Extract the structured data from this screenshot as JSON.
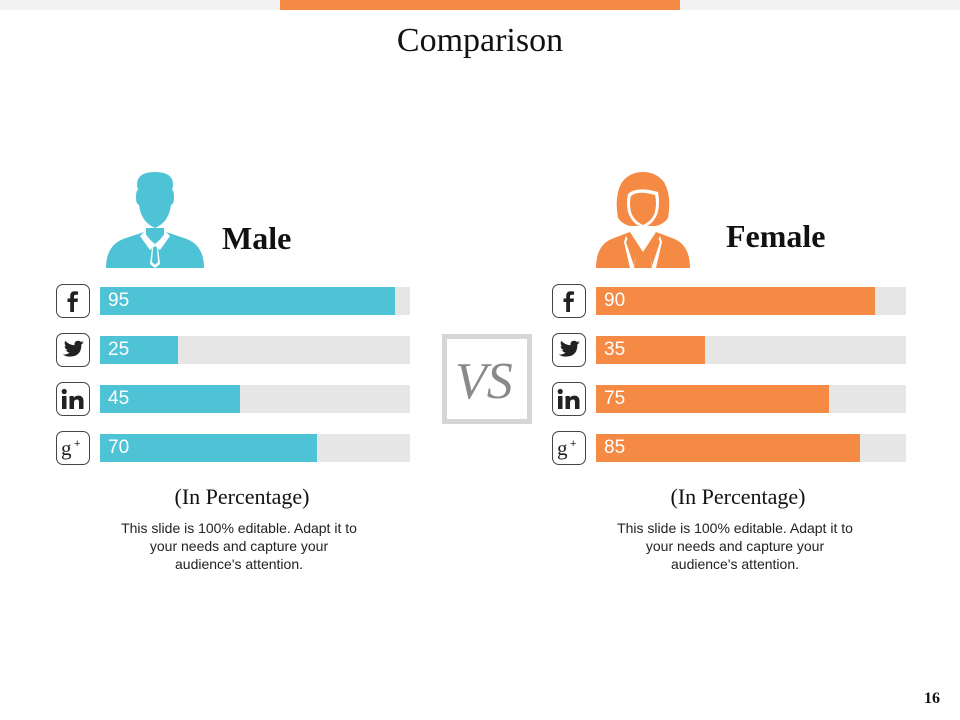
{
  "title": "Comparison",
  "page_number": "16",
  "colors": {
    "accent": "#f58a45",
    "male": "#4fc3d6",
    "female": "#f58a45",
    "track": "#e6e6e6"
  },
  "vs_label": "VS",
  "male": {
    "label": "Male",
    "avatar_icon": "male-user-icon",
    "caption": "(In Percentage)",
    "description": "This slide is 100% editable. Adapt it to your needs and capture your audience's attention.",
    "rows": [
      {
        "icon": "facebook-icon",
        "value": 95,
        "text": "95"
      },
      {
        "icon": "twitter-icon",
        "value": 25,
        "text": "25"
      },
      {
        "icon": "linkedin-icon",
        "value": 45,
        "text": "45"
      },
      {
        "icon": "google-plus-icon",
        "value": 70,
        "text": "70"
      }
    ]
  },
  "female": {
    "label": "Female",
    "avatar_icon": "female-user-icon",
    "caption": "(In Percentage)",
    "description": "This slide is 100% editable. Adapt it to your needs and capture your audience's attention.",
    "rows": [
      {
        "icon": "facebook-icon",
        "value": 90,
        "text": "90"
      },
      {
        "icon": "twitter-icon",
        "value": 35,
        "text": "35"
      },
      {
        "icon": "linkedin-icon",
        "value": 75,
        "text": "75"
      },
      {
        "icon": "google-plus-icon",
        "value": 85,
        "text": "85"
      }
    ]
  }
}
